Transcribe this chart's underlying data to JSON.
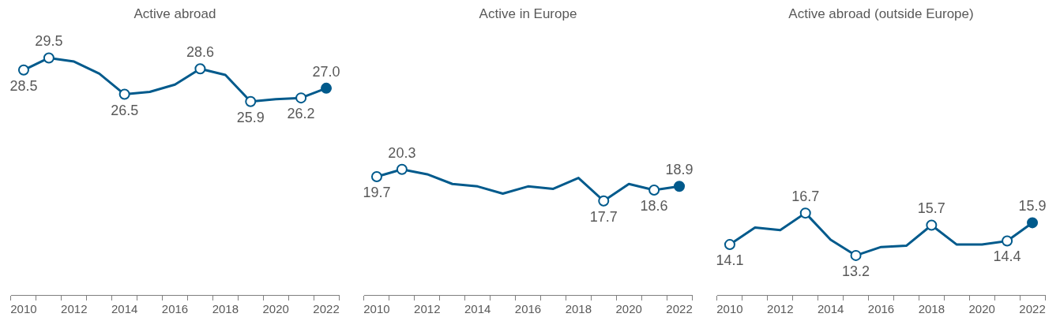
{
  "chart_data": [
    {
      "type": "line",
      "title": "Active abroad",
      "categories": [
        "2010",
        null,
        "2012",
        null,
        "2014",
        null,
        "2016",
        null,
        "2018",
        null,
        "2020",
        null,
        "2022"
      ],
      "tick_labels": "x",
      "grid": false,
      "legend": false,
      "marker": "circle",
      "series": [
        {
          "color": "#005a8c",
          "values": [
            28.5,
            29.5,
            29.2,
            28.2,
            26.5,
            26.7,
            27.3,
            28.6,
            28.1,
            25.9,
            26.1,
            26.2,
            27.0
          ],
          "colors": [
            "#ffffff",
            "#ffffff",
            null,
            null,
            "#ffffff",
            null,
            null,
            "#ffffff",
            null,
            "#ffffff",
            null,
            "#ffffff",
            "#005a8c"
          ],
          "value_labels": [
            "28.5",
            "29.5",
            null,
            null,
            "26.5",
            null,
            null,
            "28.6",
            null,
            "25.9",
            null,
            "26.2",
            "27.0"
          ]
        }
      ]
    },
    {
      "type": "line",
      "title": "Active in Europe",
      "categories": [
        "2010",
        null,
        "2012",
        null,
        "2014",
        null,
        "2016",
        null,
        "2018",
        null,
        "2020",
        null,
        "2022"
      ],
      "tick_labels": "x",
      "grid": false,
      "legend": false,
      "series": [
        {
          "color": "#005a8c",
          "values": [
            19.7,
            20.3,
            19.9,
            19.1,
            18.9,
            18.3,
            18.9,
            18.7,
            19.6,
            17.7,
            19.1,
            18.6,
            18.9
          ],
          "colors": [
            "#ffffff",
            "#ffffff",
            null,
            null,
            null,
            null,
            null,
            null,
            null,
            "#ffffff",
            null,
            "#ffffff",
            "#005a8c"
          ],
          "value_labels": [
            "19.7",
            "20.3",
            null,
            null,
            null,
            null,
            null,
            null,
            null,
            "17.7",
            null,
            "18.6",
            "18.9"
          ]
        }
      ]
    },
    {
      "type": "line",
      "title": "Active abroad (outside Europe)",
      "categories": [
        "2010",
        null,
        "2012",
        null,
        "2014",
        null,
        "2016",
        null,
        "2018",
        null,
        "2020",
        null,
        "2022"
      ],
      "tick_labels": "x",
      "grid": false,
      "legend": false,
      "series": [
        {
          "color": "#005a8c",
          "values": [
            14.1,
            15.5,
            15.3,
            16.7,
            14.5,
            13.2,
            13.9,
            14.0,
            15.7,
            14.1,
            14.1,
            14.4,
            15.9
          ],
          "colors": [
            "#ffffff",
            null,
            null,
            "#ffffff",
            null,
            "#ffffff",
            null,
            null,
            "#ffffff",
            null,
            null,
            "#ffffff",
            "#005a8c"
          ],
          "value_labels": [
            "14.1",
            null,
            null,
            "16.7",
            null,
            "13.2",
            null,
            null,
            "15.7",
            null,
            null,
            "14.4",
            "15.9"
          ]
        }
      ]
    }
  ]
}
